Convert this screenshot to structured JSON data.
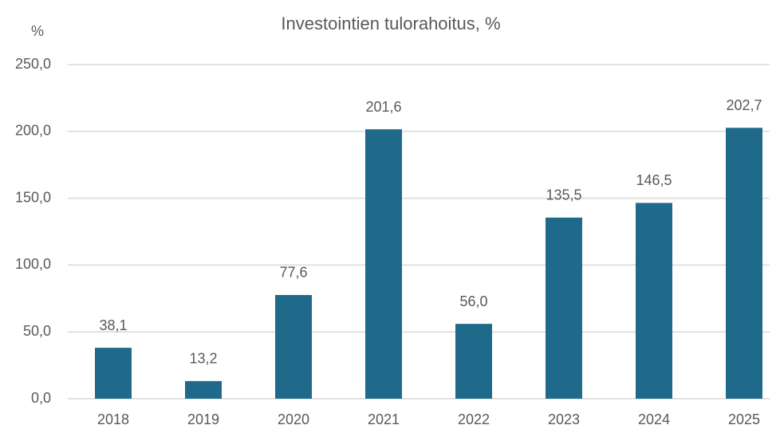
{
  "chart_data": {
    "type": "bar",
    "title": "Investointien tulorahoitus, %",
    "y_label": "%",
    "categories": [
      "2018",
      "2019",
      "2020",
      "2021",
      "2022",
      "2023",
      "2024",
      "2025"
    ],
    "values": [
      38.1,
      13.2,
      77.6,
      201.6,
      56.0,
      135.5,
      146.5,
      202.7
    ],
    "value_labels": [
      "38,1",
      "13,2",
      "77,6",
      "201,6",
      "56,0",
      "135,5",
      "146,5",
      "202,7"
    ],
    "color": "#1f6a8a",
    "ylim": [
      0,
      250
    ],
    "yticks": [
      {
        "value": 0,
        "label": "0,0"
      },
      {
        "value": 50,
        "label": "50,0"
      },
      {
        "value": 100,
        "label": "100,0"
      },
      {
        "value": 150,
        "label": "150,0"
      },
      {
        "value": 200,
        "label": "200,0"
      },
      {
        "value": 250,
        "label": "250,0"
      }
    ],
    "grid": true
  }
}
